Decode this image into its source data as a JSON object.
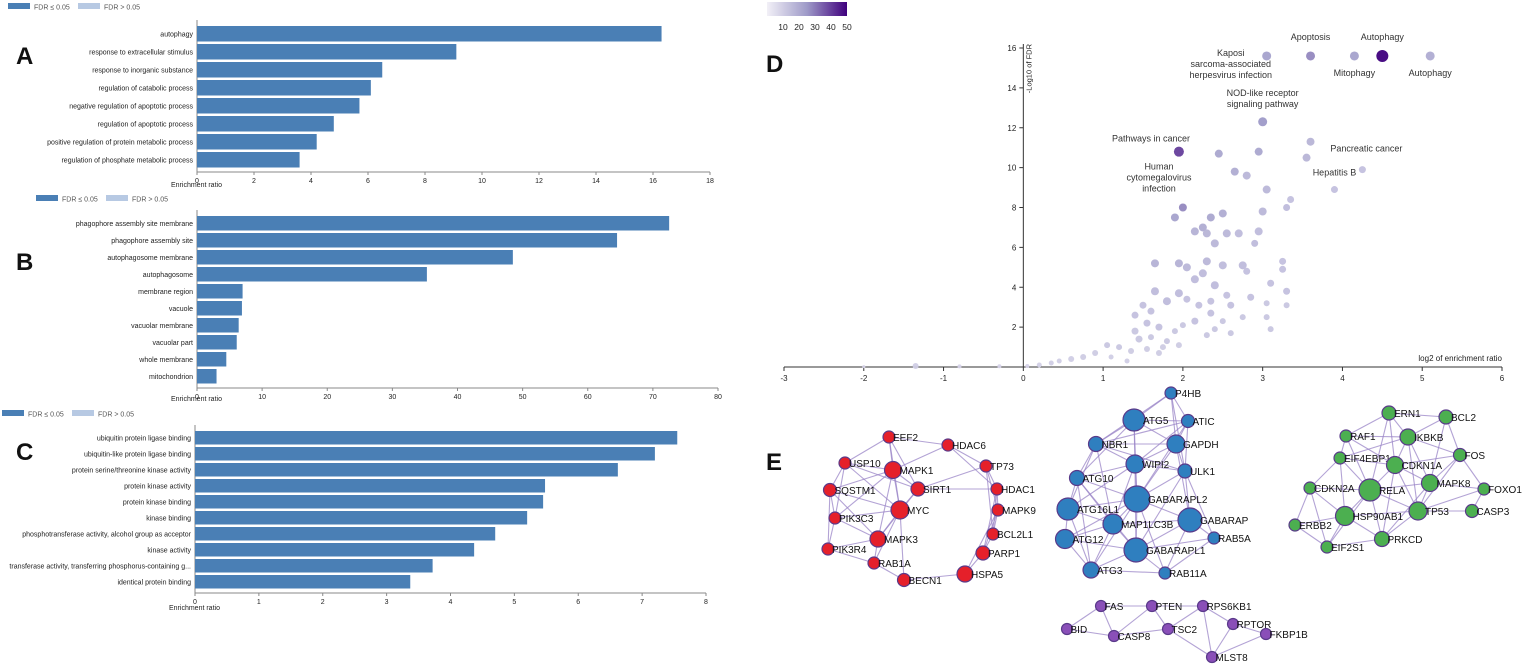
{
  "colors": {
    "bar": "#4a7fb5",
    "bar_light": "#b7c9e3",
    "axis": "#333333",
    "text": "#222222",
    "volcano_low": "#d9d7ea",
    "volcano_high": "#3f007d",
    "edge": "#9a84c7",
    "node_red": "#e5202a",
    "node_blue": "#2f7fbf",
    "node_green": "#4caf50",
    "node_purple": "#8a4fb8",
    "node_stroke": "#5a3a8a"
  },
  "legend": {
    "sig": "FDR ≤ 0.05",
    "nonsig": "FDR > 0.05"
  },
  "chart_data": [
    {
      "panel": "A",
      "type": "bar",
      "orientation": "horizontal",
      "categories": [
        "autophagy",
        "response to extracellular stimulus",
        "response to inorganic substance",
        "regulation of catabolic process",
        "negative regulation of apoptotic process",
        "regulation of apoptotic process",
        "positive regulation of protein metabolic process",
        "regulation of phosphate metabolic process"
      ],
      "values": [
        16.3,
        9.1,
        6.5,
        6.1,
        5.7,
        4.8,
        4.2,
        3.6
      ],
      "xlabel": "Enrichment ratio",
      "xlim": [
        0,
        18
      ],
      "ticks": [
        0,
        2,
        4,
        6,
        8,
        10,
        12,
        14,
        16,
        18
      ]
    },
    {
      "panel": "B",
      "type": "bar",
      "orientation": "horizontal",
      "categories": [
        "phagophore assembly site membrane",
        "phagophore assembly site",
        "autophagosome membrane",
        "autophagosome",
        "membrane region",
        "vacuole",
        "vacuolar membrane",
        "vacuolar part",
        "whole membrane",
        "mitochondrion"
      ],
      "values": [
        72.5,
        64.5,
        48.5,
        35.3,
        7.0,
        6.9,
        6.4,
        6.1,
        4.5,
        3.0
      ],
      "xlabel": "Enrichment ratio",
      "xlim": [
        0,
        80
      ],
      "ticks": [
        0,
        10,
        20,
        30,
        40,
        50,
        60,
        70,
        80
      ]
    },
    {
      "panel": "C",
      "type": "bar",
      "orientation": "horizontal",
      "categories": [
        "ubiquitin protein ligase binding",
        "ubiquitin-like protein ligase binding",
        "protein serine/threonine kinase activity",
        "protein kinase activity",
        "protein kinase binding",
        "kinase binding",
        "phosphotransferase activity, alcohol group as acceptor",
        "kinase activity",
        "transferase activity, transferring phosphorus-containing g...",
        "identical protein binding"
      ],
      "values": [
        7.55,
        7.2,
        6.62,
        5.48,
        5.45,
        5.2,
        4.7,
        4.37,
        3.72,
        3.37
      ],
      "xlabel": "Enrichment ratio",
      "xlim": [
        0,
        8
      ],
      "ticks": [
        0,
        1,
        2,
        3,
        4,
        5,
        6,
        7,
        8
      ]
    },
    {
      "panel": "D",
      "type": "scatter",
      "xlabel": "log2 of enrichment ratio",
      "ylabel": "-Log10 of FDR",
      "xlim": [
        -3,
        6
      ],
      "ylim": [
        0,
        16
      ],
      "xticks": [
        -3,
        -2,
        -1,
        0,
        1,
        2,
        3,
        4,
        5,
        6
      ],
      "yticks": [
        2,
        4,
        6,
        8,
        10,
        12,
        14,
        16
      ],
      "colorbar": {
        "ticks": [
          10,
          20,
          30,
          40,
          50
        ],
        "range": [
          0,
          50
        ]
      },
      "points": [
        {
          "x": 3.05,
          "y": 15.6,
          "c": 22,
          "r": 4.5
        },
        {
          "x": 3.6,
          "y": 15.6,
          "c": 28,
          "r": 4.5
        },
        {
          "x": 4.15,
          "y": 15.6,
          "c": 22,
          "r": 4.5
        },
        {
          "x": 4.5,
          "y": 15.6,
          "c": 50,
          "r": 6
        },
        {
          "x": 5.1,
          "y": 15.6,
          "c": 18,
          "r": 4.5
        },
        {
          "x": 3.0,
          "y": 12.3,
          "c": 25,
          "r": 4.5
        },
        {
          "x": 1.95,
          "y": 10.8,
          "c": 40,
          "r": 5
        },
        {
          "x": 2.45,
          "y": 10.7,
          "c": 20,
          "r": 4
        },
        {
          "x": 2.95,
          "y": 10.8,
          "c": 20,
          "r": 4
        },
        {
          "x": 3.6,
          "y": 11.3,
          "c": 15,
          "r": 4
        },
        {
          "x": 3.55,
          "y": 10.5,
          "c": 15,
          "r": 4
        },
        {
          "x": 4.25,
          "y": 9.9,
          "c": 10,
          "r": 3.5
        },
        {
          "x": 3.9,
          "y": 8.9,
          "c": 10,
          "r": 3.5
        },
        {
          "x": 2.65,
          "y": 9.8,
          "c": 18,
          "r": 4
        },
        {
          "x": 2.8,
          "y": 9.6,
          "c": 14,
          "r": 4
        },
        {
          "x": 3.05,
          "y": 8.9,
          "c": 14,
          "r": 4
        },
        {
          "x": 1.9,
          "y": 7.5,
          "c": 22,
          "r": 4
        },
        {
          "x": 2.0,
          "y": 8.0,
          "c": 28,
          "r": 4
        },
        {
          "x": 2.35,
          "y": 7.5,
          "c": 20,
          "r": 4
        },
        {
          "x": 2.25,
          "y": 7.0,
          "c": 18,
          "r": 4
        },
        {
          "x": 2.15,
          "y": 6.8,
          "c": 16,
          "r": 4
        },
        {
          "x": 2.3,
          "y": 6.7,
          "c": 15,
          "r": 4
        },
        {
          "x": 2.5,
          "y": 7.7,
          "c": 18,
          "r": 4
        },
        {
          "x": 2.55,
          "y": 6.7,
          "c": 14,
          "r": 4
        },
        {
          "x": 2.4,
          "y": 6.2,
          "c": 14,
          "r": 4
        },
        {
          "x": 2.7,
          "y": 6.7,
          "c": 12,
          "r": 4
        },
        {
          "x": 2.95,
          "y": 6.8,
          "c": 12,
          "r": 4
        },
        {
          "x": 3.0,
          "y": 7.8,
          "c": 14,
          "r": 4
        },
        {
          "x": 2.9,
          "y": 6.2,
          "c": 12,
          "r": 3.5
        },
        {
          "x": 3.3,
          "y": 8.0,
          "c": 12,
          "r": 3.5
        },
        {
          "x": 3.35,
          "y": 8.4,
          "c": 10,
          "r": 3.5
        },
        {
          "x": 1.65,
          "y": 5.2,
          "c": 16,
          "r": 4
        },
        {
          "x": 1.95,
          "y": 5.2,
          "c": 16,
          "r": 4
        },
        {
          "x": 2.05,
          "y": 5.0,
          "c": 14,
          "r": 4
        },
        {
          "x": 2.3,
          "y": 5.3,
          "c": 14,
          "r": 4
        },
        {
          "x": 2.5,
          "y": 5.1,
          "c": 12,
          "r": 4
        },
        {
          "x": 2.75,
          "y": 5.1,
          "c": 12,
          "r": 4
        },
        {
          "x": 2.25,
          "y": 4.7,
          "c": 12,
          "r": 4
        },
        {
          "x": 2.15,
          "y": 4.4,
          "c": 12,
          "r": 4
        },
        {
          "x": 2.4,
          "y": 4.1,
          "c": 12,
          "r": 4
        },
        {
          "x": 2.55,
          "y": 3.6,
          "c": 10,
          "r": 3.5
        },
        {
          "x": 2.8,
          "y": 4.8,
          "c": 10,
          "r": 3.5
        },
        {
          "x": 3.1,
          "y": 4.2,
          "c": 10,
          "r": 3.5
        },
        {
          "x": 3.25,
          "y": 5.3,
          "c": 10,
          "r": 3.5
        },
        {
          "x": 3.25,
          "y": 4.9,
          "c": 10,
          "r": 3.5
        },
        {
          "x": 3.3,
          "y": 3.8,
          "c": 10,
          "r": 3.5
        },
        {
          "x": 1.65,
          "y": 3.8,
          "c": 12,
          "r": 4
        },
        {
          "x": 1.8,
          "y": 3.3,
          "c": 12,
          "r": 4
        },
        {
          "x": 1.95,
          "y": 3.7,
          "c": 12,
          "r": 4
        },
        {
          "x": 2.05,
          "y": 3.4,
          "c": 10,
          "r": 3.5
        },
        {
          "x": 2.2,
          "y": 3.1,
          "c": 10,
          "r": 3.5
        },
        {
          "x": 2.35,
          "y": 3.3,
          "c": 10,
          "r": 3.5
        },
        {
          "x": 2.6,
          "y": 3.1,
          "c": 10,
          "r": 3.5
        },
        {
          "x": 2.85,
          "y": 3.5,
          "c": 10,
          "r": 3.5
        },
        {
          "x": 3.05,
          "y": 3.2,
          "c": 8,
          "r": 3
        },
        {
          "x": 3.05,
          "y": 2.5,
          "c": 8,
          "r": 3
        },
        {
          "x": 3.3,
          "y": 3.1,
          "c": 8,
          "r": 3
        },
        {
          "x": 1.5,
          "y": 3.1,
          "c": 10,
          "r": 3.5
        },
        {
          "x": 1.4,
          "y": 2.6,
          "c": 10,
          "r": 3.5
        },
        {
          "x": 1.6,
          "y": 2.8,
          "c": 10,
          "r": 3.5
        },
        {
          "x": 2.15,
          "y": 2.3,
          "c": 10,
          "r": 3.5
        },
        {
          "x": 2.35,
          "y": 2.7,
          "c": 10,
          "r": 3.5
        },
        {
          "x": 2.5,
          "y": 2.3,
          "c": 8,
          "r": 3
        },
        {
          "x": 2.75,
          "y": 2.5,
          "c": 8,
          "r": 3
        },
        {
          "x": 3.1,
          "y": 1.9,
          "c": 8,
          "r": 3
        },
        {
          "x": 1.55,
          "y": 2.2,
          "c": 10,
          "r": 3.5
        },
        {
          "x": 1.7,
          "y": 2.0,
          "c": 10,
          "r": 3.5
        },
        {
          "x": 1.9,
          "y": 1.8,
          "c": 8,
          "r": 3
        },
        {
          "x": 2.0,
          "y": 2.1,
          "c": 8,
          "r": 3
        },
        {
          "x": 2.3,
          "y": 1.6,
          "c": 8,
          "r": 3
        },
        {
          "x": 2.6,
          "y": 1.7,
          "c": 8,
          "r": 3
        },
        {
          "x": 2.4,
          "y": 1.9,
          "c": 8,
          "r": 3
        },
        {
          "x": 1.4,
          "y": 1.8,
          "c": 8,
          "r": 3.5
        },
        {
          "x": 1.45,
          "y": 1.4,
          "c": 8,
          "r": 3.5
        },
        {
          "x": 1.6,
          "y": 1.5,
          "c": 8,
          "r": 3
        },
        {
          "x": 1.8,
          "y": 1.3,
          "c": 8,
          "r": 3
        },
        {
          "x": 1.95,
          "y": 1.1,
          "c": 6,
          "r": 3
        },
        {
          "x": 1.75,
          "y": 1.0,
          "c": 6,
          "r": 3
        },
        {
          "x": 1.05,
          "y": 1.1,
          "c": 8,
          "r": 3
        },
        {
          "x": 1.2,
          "y": 1.0,
          "c": 8,
          "r": 3
        },
        {
          "x": 1.35,
          "y": 0.8,
          "c": 6,
          "r": 3
        },
        {
          "x": 1.55,
          "y": 0.9,
          "c": 6,
          "r": 3
        },
        {
          "x": 1.7,
          "y": 0.7,
          "c": 6,
          "r": 3
        },
        {
          "x": 0.9,
          "y": 0.7,
          "c": 6,
          "r": 3
        },
        {
          "x": 0.75,
          "y": 0.5,
          "c": 6,
          "r": 3
        },
        {
          "x": 0.6,
          "y": 0.4,
          "c": 5,
          "r": 3
        },
        {
          "x": 0.45,
          "y": 0.3,
          "c": 5,
          "r": 2.5
        },
        {
          "x": 0.35,
          "y": 0.2,
          "c": 5,
          "r": 2.5
        },
        {
          "x": 0.2,
          "y": 0.1,
          "c": 4,
          "r": 2.5
        },
        {
          "x": 1.1,
          "y": 0.5,
          "c": 5,
          "r": 2.5
        },
        {
          "x": 1.3,
          "y": 0.3,
          "c": 5,
          "r": 2.5
        },
        {
          "x": -1.35,
          "y": 0.05,
          "c": 5,
          "r": 3
        },
        {
          "x": -0.8,
          "y": 0.03,
          "c": 3,
          "r": 2
        },
        {
          "x": -0.3,
          "y": 0.04,
          "c": 3,
          "r": 2
        },
        {
          "x": 0.05,
          "y": 0.05,
          "c": 3,
          "r": 2
        },
        {
          "x": -2.0,
          "y": 0.02,
          "c": 3,
          "r": 1.5
        }
      ],
      "annotations": [
        {
          "lines": [
            "Kaposi",
            "sarcoma-associated",
            "herpesvirus infection"
          ],
          "x": 2.6,
          "y": 15.6
        },
        {
          "lines": [
            "Apoptosis"
          ],
          "x": 3.6,
          "y": 16.4
        },
        {
          "lines": [
            "Autophagy"
          ],
          "x": 4.5,
          "y": 16.4
        },
        {
          "lines": [
            "Mitophagy"
          ],
          "x": 4.15,
          "y": 14.6
        },
        {
          "lines": [
            "Autophagy"
          ],
          "x": 5.1,
          "y": 14.6
        },
        {
          "lines": [
            "NOD-like receptor",
            "signaling pathway"
          ],
          "x": 3.0,
          "y": 13.6
        },
        {
          "lines": [
            "Pathways in cancer"
          ],
          "x": 1.6,
          "y": 11.3
        },
        {
          "lines": [
            "Pancreatic cancer"
          ],
          "x": 4.3,
          "y": 10.8
        },
        {
          "lines": [
            "Hepatitis B"
          ],
          "x": 3.9,
          "y": 9.6
        },
        {
          "lines": [
            "Human",
            "cytomegalovirus",
            "infection"
          ],
          "x": 1.7,
          "y": 9.9
        }
      ]
    }
  ],
  "network": {
    "panel": "E",
    "clusters": [
      {
        "name": "red",
        "nodes": [
          {
            "id": "EEF2"
          },
          {
            "id": "HDAC6"
          },
          {
            "id": "USP10"
          },
          {
            "id": "MAPK1"
          },
          {
            "id": "TP73"
          },
          {
            "id": "SQSTM1"
          },
          {
            "id": "SIRT1"
          },
          {
            "id": "HDAC1"
          },
          {
            "id": "MYC"
          },
          {
            "id": "MAPK9"
          },
          {
            "id": "PIK3C3"
          },
          {
            "id": "BCL2L1"
          },
          {
            "id": "MAPK3"
          },
          {
            "id": "PIK3R4"
          },
          {
            "id": "PARP1"
          },
          {
            "id": "RAB1A"
          },
          {
            "id": "HSPA5"
          },
          {
            "id": "BECN1"
          }
        ]
      },
      {
        "name": "blue",
        "nodes": [
          {
            "id": "P4HB"
          },
          {
            "id": "ATG5"
          },
          {
            "id": "ATIC"
          },
          {
            "id": "NBR1"
          },
          {
            "id": "GAPDH"
          },
          {
            "id": "WIPI2"
          },
          {
            "id": "ULK1"
          },
          {
            "id": "ATG10"
          },
          {
            "id": "GABARAPL2"
          },
          {
            "id": "ATG16L1"
          },
          {
            "id": "GABARAP"
          },
          {
            "id": "MAP1LC3B"
          },
          {
            "id": "ATG12"
          },
          {
            "id": "RAB5A"
          },
          {
            "id": "GABARAPL1"
          },
          {
            "id": "ATG3"
          },
          {
            "id": "RAB11A"
          }
        ]
      },
      {
        "name": "green",
        "nodes": [
          {
            "id": "ERN1"
          },
          {
            "id": "BCL2"
          },
          {
            "id": "RAF1"
          },
          {
            "id": "IKBKB"
          },
          {
            "id": "FOS"
          },
          {
            "id": "EIF4EBP1"
          },
          {
            "id": "CDKN1A"
          },
          {
            "id": "CDKN2A"
          },
          {
            "id": "RELA"
          },
          {
            "id": "MAPK8"
          },
          {
            "id": "FOXO1"
          },
          {
            "id": "HSP90AB1"
          },
          {
            "id": "TP53"
          },
          {
            "id": "ERBB2"
          },
          {
            "id": "CASP3"
          },
          {
            "id": "PRKCD"
          },
          {
            "id": "EIF2S1"
          }
        ]
      },
      {
        "name": "purple",
        "nodes": [
          {
            "id": "FAS"
          },
          {
            "id": "PTEN"
          },
          {
            "id": "RPS6KB1"
          },
          {
            "id": "BID"
          },
          {
            "id": "CASP8"
          },
          {
            "id": "TSC2"
          },
          {
            "id": "RPTOR"
          },
          {
            "id": "FKBP1B"
          },
          {
            "id": "MLST8"
          }
        ]
      }
    ]
  }
}
